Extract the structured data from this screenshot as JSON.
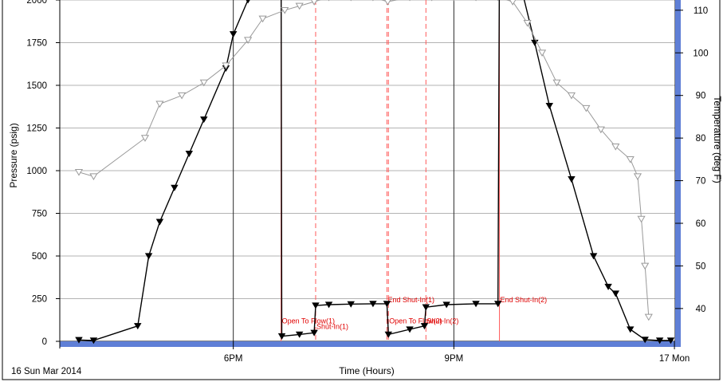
{
  "chart_data": {
    "type": "line",
    "title": "",
    "xlabel": "Time (Hours)",
    "ylabel": "Pressure (psig)",
    "y2label": "Temperature (deg F)",
    "x_origin_label": "16 Sun Mar 2014",
    "x_ticks": [
      {
        "hours": 18,
        "label": "6PM"
      },
      {
        "hours": 21,
        "label": "9PM"
      },
      {
        "hours": 24,
        "label": "17 Mon"
      }
    ],
    "xlim_hours": [
      15.64,
      24.01
    ],
    "ylim": [
      0,
      2000
    ],
    "y_ticks": [
      0,
      250,
      500,
      750,
      1000,
      1250,
      1500,
      1750,
      2000
    ],
    "y2lim": [
      32.3,
      112.4
    ],
    "y2_ticks": [
      40,
      50,
      60,
      70,
      80,
      90,
      100,
      110
    ],
    "grid": true,
    "colors": {
      "pressure": "#000000",
      "temperature": "#999999",
      "events": "#ff5a5a",
      "event_text": "#e00000",
      "axis_band": "#5f7fd6"
    },
    "series": [
      {
        "axis": "pressure",
        "marker": "filled-triangle-down",
        "x": [
          15.9,
          16.1,
          16.7,
          16.85,
          17.0,
          17.2,
          17.4,
          17.6,
          17.9,
          18.0,
          18.2,
          18.4,
          18.55,
          18.65,
          18.66,
          18.9,
          19.1,
          19.12,
          19.3,
          19.6,
          19.9,
          20.09,
          20.11,
          20.4,
          20.6,
          20.62,
          20.9,
          21.3,
          21.6,
          21.62,
          21.9,
          22.1,
          22.3,
          22.6,
          22.9,
          23.1,
          23.2,
          23.4,
          23.6,
          23.8,
          23.95
        ],
        "values": [
          8,
          5,
          90,
          500,
          700,
          900,
          1100,
          1300,
          1600,
          1800,
          2000,
          2200,
          2350,
          2350,
          30,
          40,
          50,
          210,
          215,
          218,
          220,
          220,
          40,
          70,
          90,
          200,
          215,
          220,
          220,
          2300,
          2100,
          1750,
          1380,
          950,
          500,
          320,
          280,
          70,
          10,
          5,
          5
        ]
      },
      {
        "axis": "temperature",
        "marker": "open-triangle-down",
        "x": [
          15.9,
          16.1,
          16.8,
          17.0,
          17.3,
          17.6,
          17.9,
          18.2,
          18.4,
          18.7,
          18.9,
          19.1,
          19.3,
          19.6,
          19.9,
          20.1,
          20.4,
          20.7,
          21.0,
          21.3,
          21.6,
          21.8,
          22.0,
          22.2,
          22.4,
          22.6,
          22.8,
          23.0,
          23.2,
          23.4,
          23.5,
          23.55,
          23.6,
          23.65
        ],
        "values": [
          72,
          71,
          80,
          88,
          90,
          93,
          97,
          103,
          108,
          110,
          111,
          112,
          113,
          113,
          113,
          112,
          113,
          113,
          113,
          113,
          113,
          112,
          107,
          100,
          93,
          90,
          87,
          82,
          78,
          75,
          71,
          61,
          50,
          38
        ]
      }
    ],
    "events": [
      {
        "hours": 18.65,
        "label": "Open To Flow(1)",
        "row": 1,
        "solid": true
      },
      {
        "hours": 19.12,
        "label": "Shut-In(1)",
        "row": 2,
        "solid": false
      },
      {
        "hours": 20.09,
        "label": "End Shut-In(1)",
        "row": 0,
        "solid": false
      },
      {
        "hours": 20.11,
        "label": "Open To Flow(2)",
        "row": 1,
        "solid": false
      },
      {
        "hours": 20.62,
        "label": "Shut-In(2)",
        "row": 1,
        "solid": false
      },
      {
        "hours": 21.62,
        "label": "End Shut-In(2)",
        "row": 0,
        "solid": true
      }
    ]
  }
}
